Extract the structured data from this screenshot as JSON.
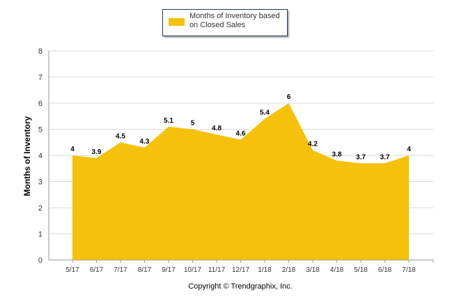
{
  "legend": {
    "label": "Months of Inventory based on Closed Sales"
  },
  "copyright": "Copyright © Trendgraphix, Inc.",
  "colors": {
    "area_fill": "#f5c10a",
    "grid": "#d9d9d9",
    "axis": "#999999"
  },
  "chart_data": {
    "type": "area",
    "title": "",
    "xlabel": "",
    "ylabel": "Months of Inventory",
    "categories": [
      "5/17",
      "6/17",
      "7/17",
      "8/17",
      "9/17",
      "10/17",
      "11/17",
      "12/17",
      "1/18",
      "2/18",
      "3/18",
      "4/18",
      "5/18",
      "6/18",
      "7/18"
    ],
    "series": [
      {
        "name": "Months of Inventory based on Closed Sales",
        "values": [
          4,
          3.9,
          4.5,
          4.3,
          5.1,
          5,
          4.8,
          4.6,
          5.4,
          6,
          4.2,
          3.8,
          3.7,
          3.7,
          4
        ]
      }
    ],
    "data_labels": [
      "4",
      "3.9",
      "4.5",
      "4.3",
      "5.1",
      "5",
      "4.8",
      "4.6",
      "5.4",
      "6",
      "4.2",
      "3.8",
      "3.7",
      "3.7",
      "4"
    ],
    "ylim": [
      0,
      8
    ],
    "yticks": [
      0,
      1,
      2,
      3,
      4,
      5,
      6,
      7,
      8
    ],
    "grid": true,
    "legend_position": "top-center"
  }
}
